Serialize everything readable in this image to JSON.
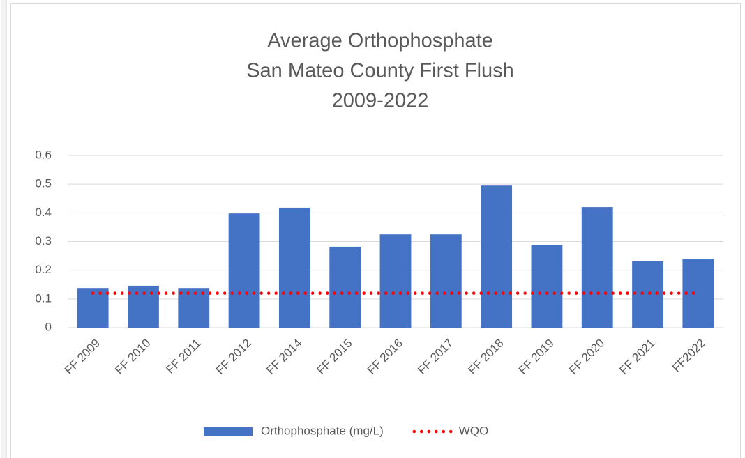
{
  "chart_data": {
    "type": "bar",
    "title": [
      "Average Orthophosphate",
      "San Mateo County First Flush",
      "2009-2022"
    ],
    "categories": [
      "FF 2009",
      "FF 2010",
      "FF 2011",
      "FF 2012",
      "FF 2014",
      "FF 2015",
      "FF 2016",
      "FF 2017",
      "FF 2018",
      "FF 2019",
      "FF 2020",
      "FF 2021",
      "FF2022"
    ],
    "series": [
      {
        "name": "Orthophosphate (mg/L)",
        "color": "#4472c4",
        "type": "bar",
        "values": [
          0.138,
          0.146,
          0.138,
          0.398,
          0.418,
          0.282,
          0.325,
          0.325,
          0.495,
          0.287,
          0.42,
          0.231,
          0.238
        ]
      },
      {
        "name": "WQO",
        "color": "#ff0000",
        "type": "line",
        "dotted": true,
        "values": [
          0.12,
          0.12,
          0.12,
          0.12,
          0.12,
          0.12,
          0.12,
          0.12,
          0.12,
          0.12,
          0.12,
          0.12,
          0.12
        ]
      }
    ],
    "ylim": [
      0,
      0.6
    ],
    "yticks": [
      0,
      0.1,
      0.2,
      0.3,
      0.4,
      0.5,
      0.6
    ],
    "grid": true,
    "legend": "bottom"
  }
}
